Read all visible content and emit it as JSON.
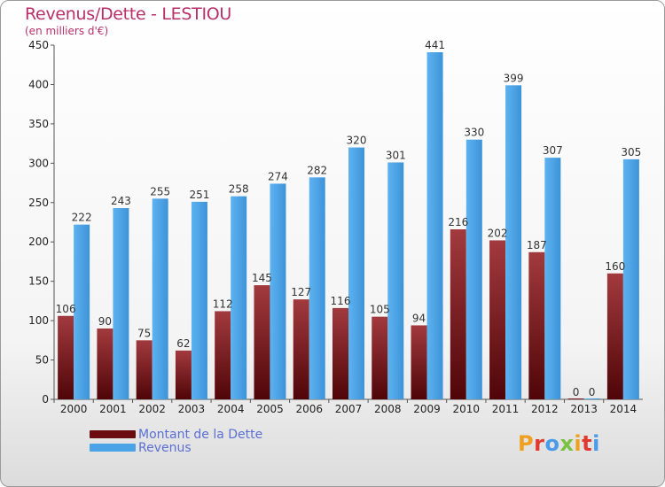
{
  "title": "Revenus/Dette - LESTIOU",
  "subtitle": "(en milliers d'€)",
  "colors": {
    "dette": "#6b0d10",
    "revenus": "#4aa3e6",
    "title": "#b8306a",
    "legend_text": "#5b6fd6"
  },
  "legend": [
    {
      "label": "Montant de la Dette",
      "color": "#6b0d10"
    },
    {
      "label": "Revenus",
      "color": "#4aa3e6"
    }
  ],
  "logo": {
    "letters": [
      "P",
      "r",
      "o",
      "x",
      "i",
      "t",
      "i"
    ],
    "colors": [
      "#f0a020",
      "#e03a2f",
      "#4a9be8",
      "#7cc242",
      "#f0a020",
      "#e03a2f",
      "#4a9be8"
    ]
  },
  "chart_data": {
    "type": "bar",
    "categories": [
      "2000",
      "2001",
      "2002",
      "2003",
      "2004",
      "2005",
      "2006",
      "2007",
      "2008",
      "2009",
      "2010",
      "2011",
      "2012",
      "2013",
      "2014"
    ],
    "series": [
      {
        "name": "Montant de la Dette",
        "values": [
          106,
          90,
          75,
          62,
          112,
          145,
          127,
          116,
          105,
          94,
          216,
          202,
          187,
          0,
          160
        ]
      },
      {
        "name": "Revenus",
        "values": [
          222,
          243,
          255,
          251,
          258,
          274,
          282,
          320,
          301,
          441,
          330,
          399,
          307,
          0,
          305
        ]
      }
    ],
    "yticks": [
      0,
      50,
      100,
      150,
      200,
      250,
      300,
      350,
      400,
      450
    ],
    "ylim": [
      0,
      450
    ],
    "grid": false,
    "legend_position": "bottom-left"
  }
}
